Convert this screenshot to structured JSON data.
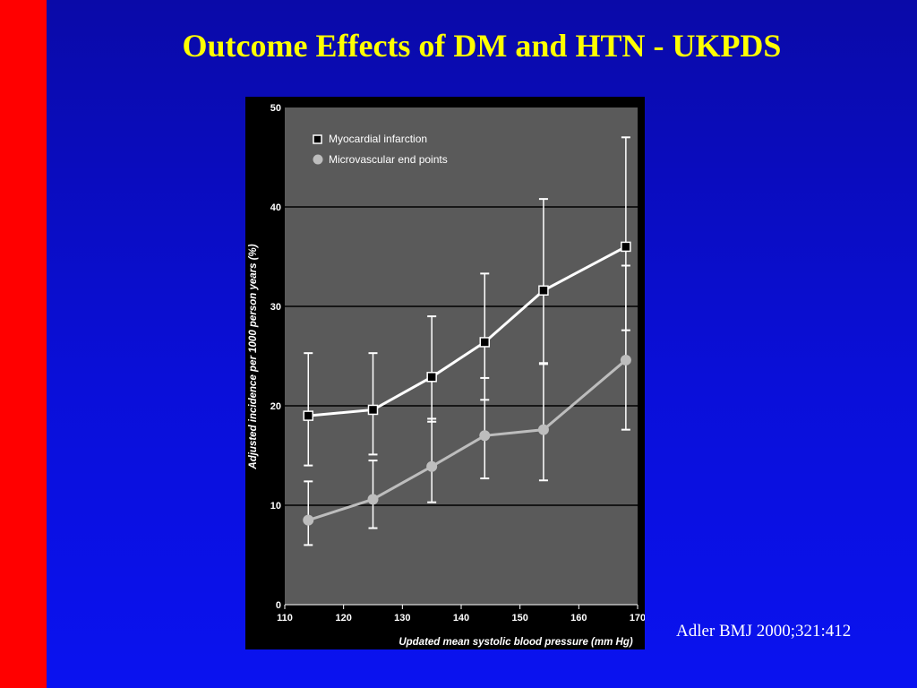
{
  "slide": {
    "title": "Outcome Effects of DM and HTN - UKPDS",
    "citation": "Adler BMJ 2000;321:412",
    "colors": {
      "background": "#0a0fd8",
      "left_bar": "#ff0000",
      "title": "#ffff00",
      "plot_area": "#5a5a5a",
      "panel": "#000000"
    }
  },
  "chart_data": {
    "type": "line",
    "title": "",
    "xlabel": "Updated mean systolic blood pressure (mm Hg)",
    "ylabel": "Adjusted incidence per 1000 person years (%)",
    "xlim": [
      110,
      170
    ],
    "ylim": [
      0,
      50
    ],
    "xticks": [
      110,
      120,
      130,
      140,
      150,
      160,
      170
    ],
    "yticks": [
      0,
      10,
      20,
      30,
      40,
      50
    ],
    "grid": "horizontal at 10, 20, 30, 40",
    "legend_position": "top-left",
    "series": [
      {
        "name": "Myocardial infarction",
        "marker": "square",
        "color": "#ffffff",
        "x": [
          114,
          125,
          135,
          144,
          154,
          168
        ],
        "y": [
          19,
          19.6,
          22.9,
          26.4,
          31.6,
          36
        ],
        "ci_low": [
          14,
          15.1,
          18.4,
          20.6,
          24.2,
          27.6
        ],
        "ci_high": [
          25.3,
          25.3,
          29,
          33.3,
          40.8,
          47
        ]
      },
      {
        "name": "Microvascular end points",
        "marker": "circle",
        "color": "#bdbdbd",
        "x": [
          114,
          125,
          135,
          144,
          154,
          168
        ],
        "y": [
          8.5,
          10.6,
          13.9,
          17,
          17.6,
          24.6
        ],
        "ci_low": [
          6,
          7.7,
          10.3,
          12.7,
          12.5,
          17.6
        ],
        "ci_high": [
          12.4,
          14.5,
          18.7,
          22.8,
          24.3,
          34.1
        ]
      }
    ]
  }
}
